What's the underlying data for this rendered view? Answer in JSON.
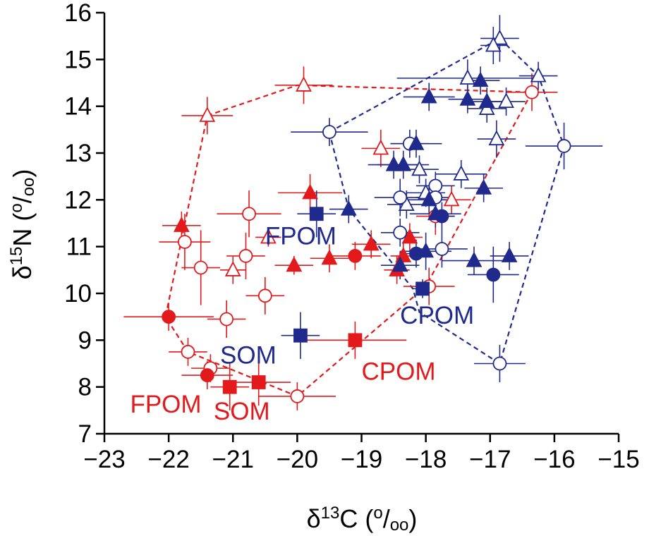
{
  "chart_data": {
    "type": "scatter",
    "title": "",
    "xlabel": {
      "main": "δ",
      "sup": "13",
      "tail": "C (",
      "unit_sup": "o",
      "unit_slash": "/",
      "unit_sub": "oo",
      "close": ")"
    },
    "ylabel": {
      "main": "δ",
      "sup": "15",
      "tail": "N (",
      "unit_sup": "o",
      "unit_slash": "/",
      "unit_sub": "oo",
      "close": ")"
    },
    "xlim": [
      -23,
      -15
    ],
    "ylim": [
      7,
      16
    ],
    "xticks": [
      -23,
      -22,
      -21,
      -20,
      -19,
      -18,
      -17,
      -16,
      -15
    ],
    "xtick_labels": [
      "−23",
      "−22",
      "−21",
      "−20",
      "−19",
      "−18",
      "−17",
      "−16",
      "−15"
    ],
    "yticks": [
      7,
      8,
      9,
      10,
      11,
      12,
      13,
      14,
      15,
      16
    ],
    "ytick_labels": [
      "7",
      "8",
      "9",
      "10",
      "11",
      "12",
      "13",
      "14",
      "15",
      "16"
    ],
    "grid": false,
    "colors": {
      "red": "#e31a1c",
      "blue": "#1f2a8c"
    },
    "annotations": [
      {
        "text": "FPOM",
        "x": -20.5,
        "y": 11.05,
        "color": "blue"
      },
      {
        "text": "CPOM",
        "x": -18.4,
        "y": 9.35,
        "color": "blue"
      },
      {
        "text": "SOM",
        "x": -21.2,
        "y": 8.5,
        "color": "blue"
      },
      {
        "text": "CPOM",
        "x": -19.0,
        "y": 8.15,
        "color": "red"
      },
      {
        "text": "FPOM",
        "x": -22.6,
        "y": 7.45,
        "color": "red"
      },
      {
        "text": "SOM",
        "x": -21.3,
        "y": 7.3,
        "color": "red"
      }
    ],
    "hulls": [
      {
        "color": "red",
        "points": [
          [
            -21.4,
            13.8
          ],
          [
            -20.0,
            14.45
          ],
          [
            -16.35,
            14.3
          ],
          [
            -18.0,
            10.15
          ],
          [
            -20.0,
            7.8
          ],
          [
            -21.7,
            8.75
          ],
          [
            -22.05,
            9.5
          ]
        ]
      },
      {
        "color": "blue",
        "points": [
          [
            -19.5,
            13.45
          ],
          [
            -16.85,
            15.45
          ],
          [
            -16.25,
            14.65
          ],
          [
            -15.85,
            13.15
          ],
          [
            -16.85,
            8.5
          ],
          [
            -18.1,
            9.6
          ],
          [
            -18.2,
            10.1
          ],
          [
            -19.2,
            11.8
          ]
        ]
      }
    ],
    "series": [
      {
        "color": "red",
        "marker": "open-triangle",
        "points": [
          {
            "x": -21.4,
            "y": 13.8,
            "xerr": 0.4,
            "yerr": 0.4
          },
          {
            "x": -19.9,
            "y": 14.45,
            "xerr": 0.45,
            "yerr": 0.4
          },
          {
            "x": -18.7,
            "y": 13.1,
            "xerr": 0.3,
            "yerr": 0.4
          },
          {
            "x": -20.45,
            "y": 11.2,
            "xerr": 0.2,
            "yerr": 0.2
          },
          {
            "x": -21.0,
            "y": 10.5,
            "xerr": 0.2,
            "yerr": 0.3
          },
          {
            "x": -17.6,
            "y": 12.0,
            "xerr": 0.3,
            "yerr": 0.3
          }
        ]
      },
      {
        "color": "red",
        "marker": "open-circle",
        "points": [
          {
            "x": -16.35,
            "y": 14.3,
            "xerr": 0.4,
            "yerr": 0.4
          },
          {
            "x": -20.75,
            "y": 11.7,
            "xerr": 0.5,
            "yerr": 0.5
          },
          {
            "x": -21.75,
            "y": 11.1,
            "xerr": 0.4,
            "yerr": 0.6
          },
          {
            "x": -21.5,
            "y": 10.55,
            "xerr": 0.3,
            "yerr": 0.8
          },
          {
            "x": -20.8,
            "y": 10.8,
            "xerr": 0.3,
            "yerr": 0.5
          },
          {
            "x": -20.5,
            "y": 9.95,
            "xerr": 0.3,
            "yerr": 0.4
          },
          {
            "x": -21.1,
            "y": 9.45,
            "xerr": 0.3,
            "yerr": 0.4
          },
          {
            "x": -21.7,
            "y": 8.75,
            "xerr": 0.3,
            "yerr": 0.3
          },
          {
            "x": -21.35,
            "y": 8.4,
            "xerr": 0.3,
            "yerr": 0.3
          },
          {
            "x": -20.0,
            "y": 7.8,
            "xerr": 0.6,
            "yerr": 0.3
          },
          {
            "x": -17.95,
            "y": 10.15,
            "xerr": 0.4,
            "yerr": 0.4
          },
          {
            "x": -17.85,
            "y": 11.65,
            "xerr": 0.3,
            "yerr": 0.4
          }
        ]
      },
      {
        "color": "red",
        "marker": "filled-triangle",
        "points": [
          {
            "x": -21.8,
            "y": 11.45,
            "xerr": 0.3,
            "yerr": 0.3
          },
          {
            "x": -19.8,
            "y": 12.15,
            "xerr": 0.5,
            "yerr": 0.4
          },
          {
            "x": -20.05,
            "y": 10.6,
            "xerr": 0.3,
            "yerr": 0.2
          },
          {
            "x": -19.5,
            "y": 10.75,
            "xerr": 0.3,
            "yerr": 0.3
          },
          {
            "x": -18.85,
            "y": 11.05,
            "xerr": 0.3,
            "yerr": 0.3
          },
          {
            "x": -18.25,
            "y": 11.2,
            "xerr": 0.2,
            "yerr": 0.3
          },
          {
            "x": -18.35,
            "y": 10.8,
            "xerr": 0.2,
            "yerr": 0.3
          },
          {
            "x": -18.45,
            "y": 10.5,
            "xerr": 0.2,
            "yerr": 0.3
          }
        ]
      },
      {
        "color": "red",
        "marker": "filled-circle",
        "points": [
          {
            "x": -22.0,
            "y": 9.5,
            "xerr": 0.7,
            "yerr": 0.3
          },
          {
            "x": -19.1,
            "y": 10.8,
            "xerr": 0.4,
            "yerr": 0.3
          },
          {
            "x": -21.4,
            "y": 8.25,
            "xerr": 0.4,
            "yerr": 0.3
          }
        ]
      },
      {
        "color": "red",
        "marker": "filled-square",
        "points": [
          {
            "x": -19.1,
            "y": 9.0,
            "xerr": 0.8,
            "yerr": 0.4
          },
          {
            "x": -20.6,
            "y": 8.1,
            "xerr": 0.5,
            "yerr": 0.5
          },
          {
            "x": -21.05,
            "y": 8.0,
            "xerr": 0.3,
            "yerr": 0.5
          }
        ]
      },
      {
        "color": "blue",
        "marker": "open-triangle",
        "points": [
          {
            "x": -16.85,
            "y": 15.45,
            "xerr": 0.3,
            "yerr": 0.5
          },
          {
            "x": -16.95,
            "y": 15.3,
            "xerr": 0.2,
            "yerr": 0.4
          },
          {
            "x": -16.25,
            "y": 14.65,
            "xerr": 0.3,
            "yerr": 0.3
          },
          {
            "x": -17.35,
            "y": 14.6,
            "xerr": 1.1,
            "yerr": 0.4
          },
          {
            "x": -17.05,
            "y": 13.95,
            "xerr": 0.3,
            "yerr": 0.3
          },
          {
            "x": -16.75,
            "y": 14.1,
            "xerr": 0.3,
            "yerr": 0.3
          },
          {
            "x": -16.9,
            "y": 13.3,
            "xerr": 0.3,
            "yerr": 0.4
          },
          {
            "x": -17.45,
            "y": 12.55,
            "xerr": 0.4,
            "yerr": 0.3
          },
          {
            "x": -18.1,
            "y": 12.65,
            "xerr": 0.3,
            "yerr": 0.3
          },
          {
            "x": -18.0,
            "y": 12.15,
            "xerr": 0.3,
            "yerr": 0.3
          },
          {
            "x": -18.3,
            "y": 11.9,
            "xerr": 0.3,
            "yerr": 0.3
          }
        ]
      },
      {
        "color": "blue",
        "marker": "open-circle",
        "points": [
          {
            "x": -19.5,
            "y": 13.45,
            "xerr": 0.6,
            "yerr": 0.3
          },
          {
            "x": -15.85,
            "y": 13.15,
            "xerr": 0.6,
            "yerr": 0.5
          },
          {
            "x": -18.25,
            "y": 13.2,
            "xerr": 0.3,
            "yerr": 0.3
          },
          {
            "x": -18.4,
            "y": 12.05,
            "xerr": 0.4,
            "yerr": 0.4
          },
          {
            "x": -17.85,
            "y": 12.3,
            "xerr": 0.3,
            "yerr": 0.3
          },
          {
            "x": -17.85,
            "y": 12.05,
            "xerr": 0.3,
            "yerr": 0.3
          },
          {
            "x": -17.75,
            "y": 10.95,
            "xerr": 0.4,
            "yerr": 0.4
          },
          {
            "x": -18.4,
            "y": 11.3,
            "xerr": 0.3,
            "yerr": 0.3
          },
          {
            "x": -16.85,
            "y": 8.5,
            "xerr": 0.4,
            "yerr": 0.4
          }
        ]
      },
      {
        "color": "blue",
        "marker": "filled-triangle",
        "points": [
          {
            "x": -17.95,
            "y": 14.2,
            "xerr": 0.4,
            "yerr": 0.3
          },
          {
            "x": -17.15,
            "y": 14.55,
            "xerr": 0.3,
            "yerr": 0.3
          },
          {
            "x": -17.35,
            "y": 14.15,
            "xerr": 0.3,
            "yerr": 0.3
          },
          {
            "x": -17.05,
            "y": 14.1,
            "xerr": 0.3,
            "yerr": 0.3
          },
          {
            "x": -18.15,
            "y": 13.2,
            "xerr": 0.4,
            "yerr": 0.3
          },
          {
            "x": -18.5,
            "y": 12.75,
            "xerr": 0.4,
            "yerr": 0.3
          },
          {
            "x": -18.35,
            "y": 12.75,
            "xerr": 0.4,
            "yerr": 0.3
          },
          {
            "x": -17.95,
            "y": 12.0,
            "xerr": 0.4,
            "yerr": 0.3
          },
          {
            "x": -17.1,
            "y": 12.25,
            "xerr": 0.3,
            "yerr": 0.3
          },
          {
            "x": -19.2,
            "y": 11.8,
            "xerr": 0.3,
            "yerr": 0.3
          },
          {
            "x": -17.85,
            "y": 11.7,
            "xerr": 0.4,
            "yerr": 0.3
          },
          {
            "x": -17.25,
            "y": 10.7,
            "xerr": 0.5,
            "yerr": 0.3
          },
          {
            "x": -16.7,
            "y": 10.8,
            "xerr": 0.3,
            "yerr": 0.3
          },
          {
            "x": -18.0,
            "y": 10.9,
            "xerr": 0.4,
            "yerr": 0.4
          },
          {
            "x": -18.4,
            "y": 10.6,
            "xerr": 0.3,
            "yerr": 0.3
          }
        ]
      },
      {
        "color": "blue",
        "marker": "filled-circle",
        "points": [
          {
            "x": -16.95,
            "y": 10.4,
            "xerr": 0.4,
            "yerr": 0.6
          },
          {
            "x": -18.15,
            "y": 10.85,
            "xerr": 0.2,
            "yerr": 0.3
          },
          {
            "x": -17.75,
            "y": 11.65,
            "xerr": 0.2,
            "yerr": 0.3
          }
        ]
      },
      {
        "color": "blue",
        "marker": "filled-square",
        "points": [
          {
            "x": -19.7,
            "y": 11.7,
            "xerr": 0.3,
            "yerr": 0.5
          },
          {
            "x": -19.95,
            "y": 9.1,
            "xerr": 0.3,
            "yerr": 0.5
          },
          {
            "x": -18.05,
            "y": 10.1,
            "xerr": 0.15,
            "yerr": 0.2
          }
        ]
      }
    ]
  }
}
